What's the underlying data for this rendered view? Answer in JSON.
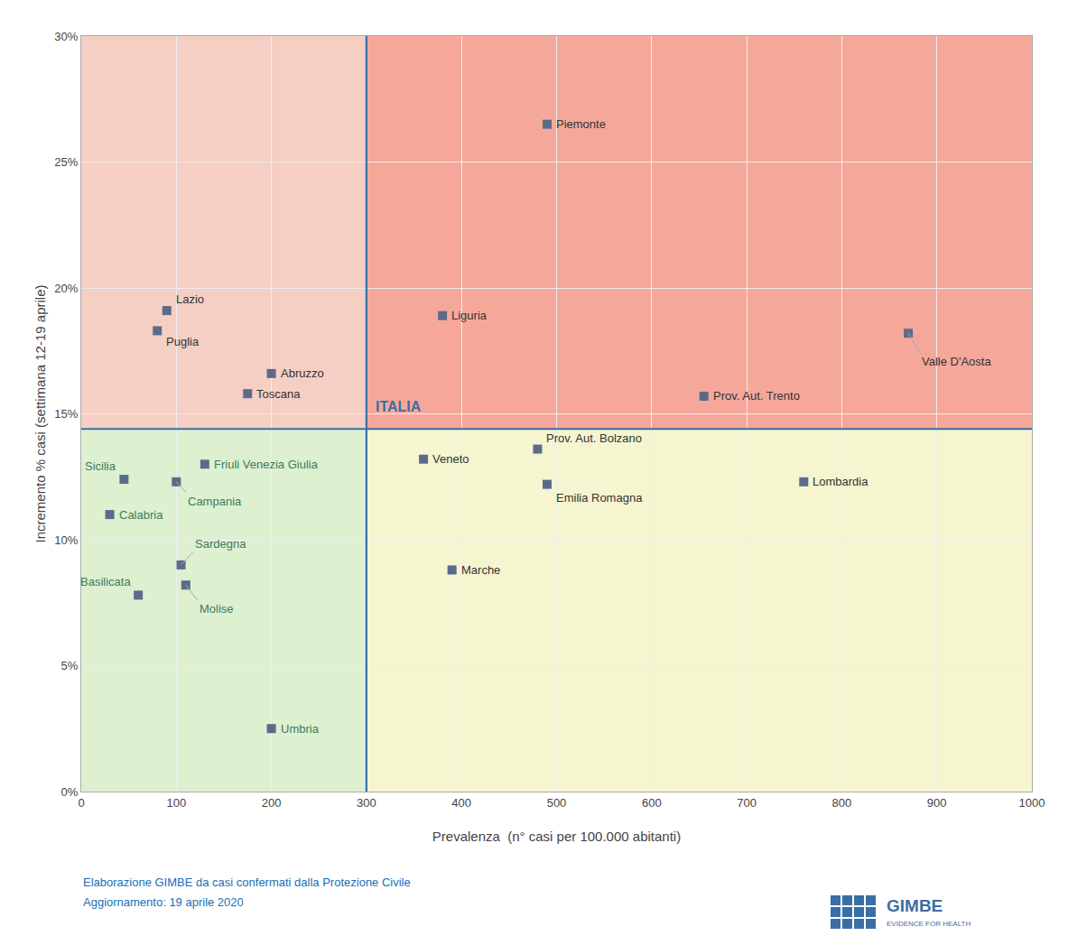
{
  "chart_data": {
    "type": "scatter",
    "x_label": "Prevalenza  (n° casi per 100.000 abitanti)",
    "y_label": "Incremento % casi (settimana 12-19 aprile)",
    "labels": [
      "Piemonte",
      "Liguria",
      "Valle D'Aosta",
      "Lazio",
      "Puglia",
      "Abruzzo",
      "Toscana",
      "Prov. Aut. Trento",
      "Sicilia",
      "Campania",
      "Friuli Venezia Giulia",
      "Calabria",
      "Veneto",
      "Prov. Aut. Bolzano",
      "Emilia Romagna",
      "Lombardia",
      "Sardegna",
      "Molise",
      "Basilicata",
      "Marche",
      "Umbria"
    ],
    "x": [
      490,
      380,
      870,
      90,
      80,
      200,
      175,
      655,
      45,
      100,
      130,
      30,
      360,
      480,
      490,
      760,
      105,
      110,
      60,
      390,
      200
    ],
    "y": [
      0.265,
      0.189,
      0.182,
      0.191,
      0.183,
      0.166,
      0.158,
      0.157,
      0.124,
      0.123,
      0.13,
      0.11,
      0.132,
      0.136,
      0.122,
      0.123,
      0.09,
      0.082,
      0.078,
      0.088,
      0.025
    ],
    "color": "#5b6b8a",
    "marker": "square",
    "xlim": [
      0,
      1000
    ],
    "ylim": [
      0,
      0.3
    ],
    "xticks": [
      0,
      100,
      200,
      300,
      400,
      500,
      600,
      700,
      800,
      900,
      1000
    ],
    "yticks": [
      {
        "value": 0,
        "label": "0%"
      },
      {
        "value": 0.05,
        "label": "5%"
      },
      {
        "value": 0.1,
        "label": "10%"
      },
      {
        "value": 0.15,
        "label": "15%"
      },
      {
        "value": 0.2,
        "label": "20%"
      },
      {
        "value": 0.25,
        "label": "25%"
      },
      {
        "value": 0.3,
        "label": "30%"
      }
    ],
    "grid": true,
    "vline_x": 300,
    "hline_y": 0.144,
    "divider_color": "#3a6ea5",
    "quadrant_colors": {
      "top_left": "#f5cfc4",
      "top_right": "#f5a89a",
      "bottom_left": "#ddf0d0",
      "bottom_right": "#f5f5d0"
    },
    "label_colors": {
      "bottom_left": "#3d7a5e",
      "other": "#333333"
    },
    "annotations": [
      {
        "text": "ITALIA",
        "x": 308,
        "y": 0.149,
        "color": "#3a6ea5"
      }
    ],
    "footer": [
      "Elaborazione GIMBE da casi confermati dalla Protezione Civile",
      "Aggiornamento: 19 aprile 2020"
    ],
    "footer_color": "#1a6eb5",
    "logo": {
      "title": "GIMBE",
      "subtitle": "EVIDENCE FOR HEALTH",
      "color": "#3a6ea5"
    }
  }
}
